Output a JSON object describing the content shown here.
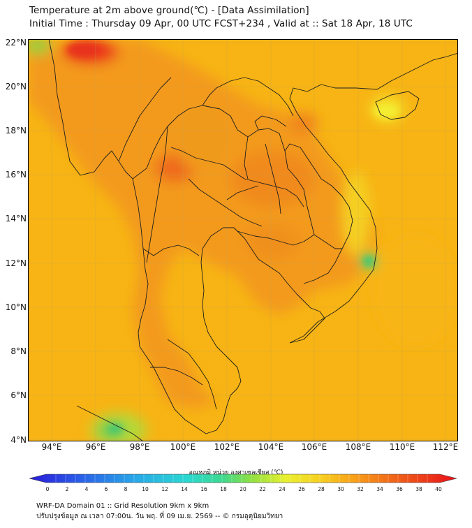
{
  "header": {
    "title_line1": "Temperature at 2m above ground(℃) - [Data Assimilation]",
    "title_line2": "Initial Time : Thursday 09 Apr, 00 UTC FCST+234 , Valid at :: Sat 18 Apr, 18 UTC"
  },
  "map": {
    "lat_labels": [
      "22°N",
      "20°N",
      "18°N",
      "16°N",
      "14°N",
      "12°N",
      "10°N",
      "8°N",
      "6°N",
      "4°N"
    ],
    "lon_labels": [
      "94°E",
      "96°E",
      "98°E",
      "100°E",
      "102°E",
      "104°E",
      "106°E",
      "108°E",
      "110°E",
      "112°E"
    ],
    "colors": {
      "ocean": "#f7b414",
      "land_base": "#f5a61a",
      "hot": "#ef5a1a",
      "cool": "#69d04a",
      "border": "#222222"
    }
  },
  "colorbar": {
    "title": "อุณหภูมิ หน่วย องศาเซลเซียส (℃)",
    "ticks": [
      "0",
      "2",
      "4",
      "6",
      "8",
      "10",
      "12",
      "14",
      "16",
      "18",
      "20",
      "22",
      "24",
      "26",
      "28",
      "30",
      "32",
      "34",
      "36",
      "38",
      "40"
    ]
  },
  "footer": {
    "line1": "WRF-DA Domain 01 :: Grid Resolution 9km x 9km",
    "line2": "ปรับปรุงข้อมูล ณ เวลา 07:00น. วัน พฤ. ที่ 09 เม.ย. 2569 -- © กรมอุตุนิยมวิทยา"
  }
}
